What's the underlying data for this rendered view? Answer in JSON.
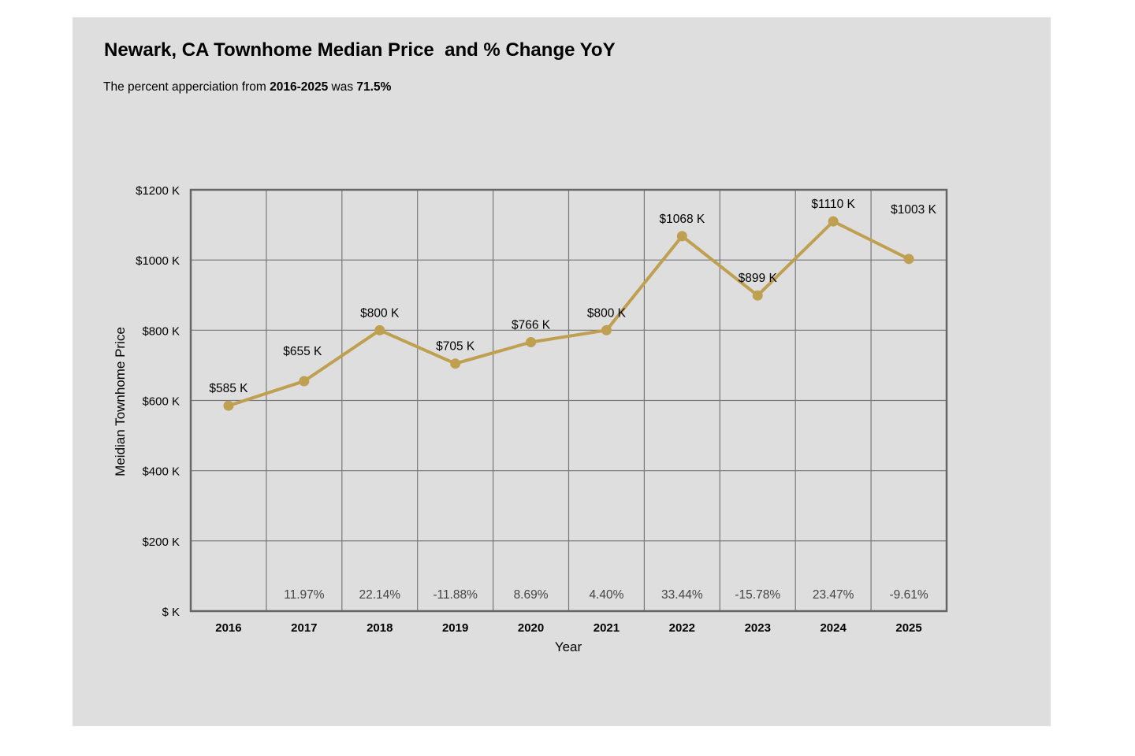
{
  "chart_data": {
    "type": "line",
    "title": "Newark, CA Townhome Median Price  and % Change YoY",
    "subtitle": {
      "prefix": "The percent apperciation from ",
      "range": "2016-2025",
      "middle": " was ",
      "value": "71.5%"
    },
    "xlabel": "Year",
    "ylabel": "Meidian Townhome Price",
    "ylim": [
      0,
      1200
    ],
    "yticks": [
      0,
      200,
      400,
      600,
      800,
      1000,
      1200
    ],
    "ytick_labels": [
      "$ K",
      "$200 K",
      "$400 K",
      "$600 K",
      "$800 K",
      "$1000 K",
      "$1200 K"
    ],
    "categories": [
      "2016",
      "2017",
      "2018",
      "2019",
      "2020",
      "2021",
      "2022",
      "2023",
      "2024",
      "2025"
    ],
    "values": [
      585,
      655,
      800,
      705,
      766,
      800,
      1068,
      899,
      1110,
      1003
    ],
    "value_labels": [
      "$585 K",
      "$655 K",
      "$800 K",
      "$705 K",
      "$766 K",
      "$800 K",
      "$1068 K",
      "$899 K",
      "$1110 K",
      "$1003 K"
    ],
    "pct_change_labels": [
      "",
      "11.97%",
      "22.14%",
      "-11.88%",
      "8.69%",
      "4.40%",
      "33.44%",
      "-15.78%",
      "23.47%",
      "-9.61%"
    ],
    "grid": true,
    "line_color": "#bf9f50",
    "background_color": "#dedede"
  }
}
